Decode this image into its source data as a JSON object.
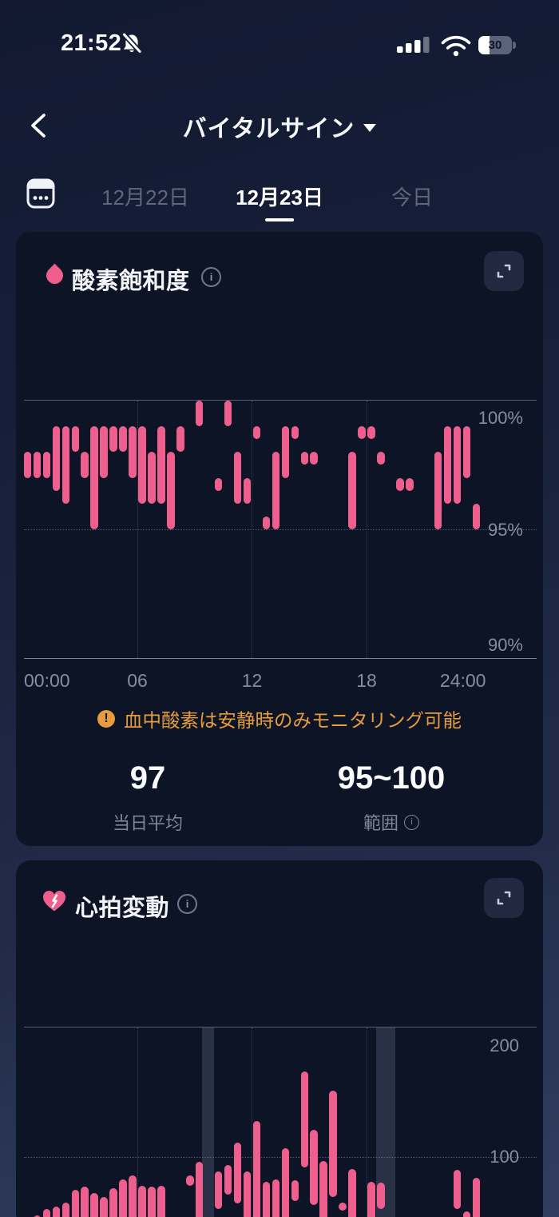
{
  "colors": {
    "accent_pink": "#ee5f8e",
    "warning_orange": "#e69c3e",
    "card_bg": "#0d1425",
    "tab_active": "#ffffff",
    "tab_inactive": "#60677c",
    "axis_label": "#868da1"
  },
  "status_bar": {
    "time": "21:52",
    "battery_percent": "30",
    "icons": [
      "notifications-muted",
      "cellular-signal",
      "wifi",
      "battery"
    ]
  },
  "nav": {
    "title": "バイタルサイン"
  },
  "date_tabs": {
    "items": [
      {
        "label": "12月22日",
        "active": false
      },
      {
        "label": "12月23日",
        "active": true
      },
      {
        "label": "今日",
        "active": false
      }
    ]
  },
  "spo2_card": {
    "title": "酸素飽和度",
    "warning": "血中酸素は安静時のみモニタリング可能",
    "stats": [
      {
        "value": "97",
        "label": "当日平均",
        "has_info": false
      },
      {
        "value": "95~100",
        "label": "範囲",
        "has_info": true
      }
    ],
    "chart_data": {
      "type": "bar",
      "subtype": "range",
      "unit": "SpO2 %",
      "slot_minutes": 30,
      "ylim": [
        90,
        100
      ],
      "grid": "dotted",
      "legend_position": "none",
      "gridline_hours": [
        6,
        12,
        18
      ],
      "x_ticks": [
        {
          "hour": 0,
          "label": "00:00"
        },
        {
          "hour": 6,
          "label": "06"
        },
        {
          "hour": 12,
          "label": "12"
        },
        {
          "hour": 18,
          "label": "18"
        },
        {
          "hour": 24,
          "label": "24:00"
        }
      ],
      "y_ticks": [
        {
          "value": 100,
          "label": "100%"
        },
        {
          "value": 95,
          "label": "95%"
        },
        {
          "value": 90,
          "label": "90%"
        }
      ],
      "bars": [
        [
          0,
          97,
          98
        ],
        [
          1,
          97,
          98
        ],
        [
          2,
          97,
          98
        ],
        [
          3,
          96.5,
          99
        ],
        [
          4,
          96,
          99
        ],
        [
          5,
          98,
          99
        ],
        [
          6,
          97,
          98
        ],
        [
          7,
          95,
          99
        ],
        [
          8,
          97,
          99
        ],
        [
          9,
          98,
          99
        ],
        [
          10,
          98,
          99
        ],
        [
          11,
          97,
          99
        ],
        [
          12,
          96,
          99
        ],
        [
          13,
          96,
          98
        ],
        [
          14,
          96,
          99
        ],
        [
          15,
          95,
          98
        ],
        [
          16,
          98,
          99
        ],
        [
          18,
          99,
          100
        ],
        [
          20,
          96.5,
          97
        ],
        [
          21,
          99,
          100
        ],
        [
          22,
          96,
          98
        ],
        [
          23,
          96,
          97
        ],
        [
          24,
          98.5,
          99
        ],
        [
          25,
          95,
          95.5
        ],
        [
          26,
          95,
          98
        ],
        [
          27,
          97,
          99
        ],
        [
          28,
          98.5,
          99
        ],
        [
          29,
          97.5,
          98
        ],
        [
          30,
          97.5,
          98
        ],
        [
          34,
          95,
          98
        ],
        [
          35,
          98.5,
          99
        ],
        [
          36,
          98.5,
          99
        ],
        [
          37,
          97.5,
          98
        ],
        [
          39,
          96.5,
          97
        ],
        [
          40,
          96.5,
          97
        ],
        [
          43,
          95,
          98
        ],
        [
          44,
          96,
          99
        ],
        [
          45,
          96,
          99
        ],
        [
          46,
          97,
          99
        ],
        [
          47,
          95,
          96
        ]
      ]
    }
  },
  "hrv_card": {
    "title": "心拍変動",
    "chart_data": {
      "type": "bar",
      "subtype": "range",
      "unit": "ms",
      "slot_minutes": 30,
      "visible_top": 200,
      "grid": "dotted",
      "legend_position": "none",
      "gridline_hours": [
        6,
        12,
        18
      ],
      "y_ticks": [
        {
          "value": 200,
          "label": "200"
        },
        {
          "value": 100,
          "label": "100"
        }
      ],
      "highlight_bands": [
        {
          "start_hour": 9.4,
          "end_hour": 10.0
        },
        {
          "start_hour": 18.5,
          "end_hour": 19.5
        }
      ],
      "bars": [
        [
          1,
          null,
          55
        ],
        [
          2,
          null,
          60
        ],
        [
          3,
          null,
          62
        ],
        [
          4,
          null,
          65
        ],
        [
          5,
          null,
          75
        ],
        [
          6,
          null,
          77
        ],
        [
          7,
          null,
          72
        ],
        [
          8,
          null,
          69
        ],
        [
          9,
          null,
          76
        ],
        [
          10,
          null,
          83
        ],
        [
          11,
          null,
          86
        ],
        [
          12,
          null,
          78
        ],
        [
          13,
          null,
          77
        ],
        [
          14,
          null,
          78
        ],
        [
          17,
          78,
          86
        ],
        [
          18,
          null,
          96
        ],
        [
          20,
          60,
          89
        ],
        [
          21,
          71,
          94
        ],
        [
          22,
          64,
          111
        ],
        [
          23,
          null,
          89
        ],
        [
          24,
          null,
          128
        ],
        [
          25,
          null,
          81
        ],
        [
          26,
          null,
          83
        ],
        [
          27,
          null,
          107
        ],
        [
          28,
          66,
          82
        ],
        [
          29,
          92,
          166
        ],
        [
          30,
          63,
          121
        ],
        [
          31,
          null,
          97
        ],
        [
          32,
          69,
          151
        ],
        [
          33,
          59,
          65
        ],
        [
          34,
          null,
          91
        ],
        [
          36,
          null,
          81
        ],
        [
          37,
          60,
          80
        ],
        [
          45,
          60,
          90
        ],
        [
          46,
          null,
          58
        ],
        [
          47,
          null,
          84
        ]
      ]
    }
  }
}
